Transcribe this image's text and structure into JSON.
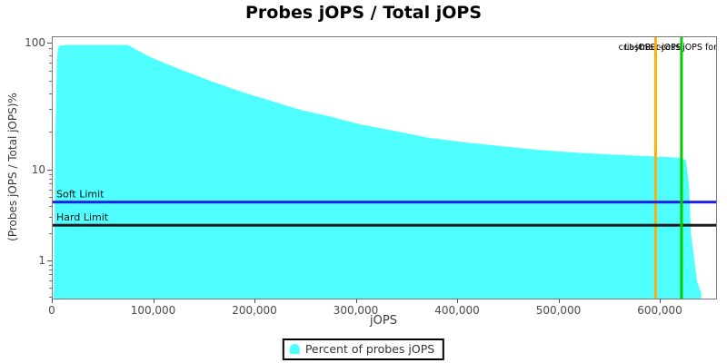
{
  "title": "Probes jOPS / Total jOPS",
  "axes": {
    "x": {
      "label": "jOPS",
      "tick_labels": [
        "0",
        "100,000",
        "200,000",
        "300,000",
        "400,000",
        "500,000",
        "600,000"
      ],
      "tick_values": [
        0,
        100000,
        200000,
        300000,
        400000,
        500000,
        600000
      ]
    },
    "y": {
      "label": "(Probes jOPS / Total jOPS)%",
      "scale": "log",
      "tick_labels": [
        "100",
        "10",
        "1"
      ],
      "tick_values": [
        100,
        10,
        1
      ]
    }
  },
  "legend": {
    "items": [
      {
        "label": "Percent of probes jOPS",
        "color": "#4FFFFF"
      }
    ]
  },
  "annotations": {
    "soft_limit": {
      "label": "Soft Limit",
      "value_pct": 4.5,
      "color": "#1E1EE6"
    },
    "hard_limit": {
      "label": "Hard Limit",
      "value_pct": 2.5,
      "color": "#1B1B1B"
    },
    "vlines": [
      {
        "label": "crit-jOPS",
        "jops": 595000,
        "color": "#FFAD0A"
      },
      {
        "label": "max-jOPS",
        "jops": 620500,
        "color": "#00CE00"
      }
    ],
    "clipped_label": "Last Success jOPS for S"
  },
  "chart_data": {
    "type": "area",
    "title": "Probes jOPS / Total jOPS",
    "xlabel": "jOPS",
    "ylabel": "(Probes jOPS / Total jOPS)%",
    "series_name": "Percent of probes jOPS",
    "fill_color": "#4FFFFF",
    "x_range": [
      0,
      655000
    ],
    "y_log_range": [
      0.37,
      110
    ],
    "grid": false,
    "legend_position": "bottom-center",
    "points": [
      [
        900,
        0.4
      ],
      [
        2700,
        20
      ],
      [
        4000,
        70
      ],
      [
        5000,
        90
      ],
      [
        6500,
        96
      ],
      [
        13000,
        97.5
      ],
      [
        74000,
        97.5
      ],
      [
        95000,
        79
      ],
      [
        125000,
        63
      ],
      [
        155000,
        51
      ],
      [
        185000,
        42
      ],
      [
        215000,
        35.5
      ],
      [
        245000,
        30
      ],
      [
        275000,
        26.5
      ],
      [
        305000,
        23
      ],
      [
        335000,
        20.7
      ],
      [
        370000,
        18.2
      ],
      [
        406000,
        16.7
      ],
      [
        442000,
        15.6
      ],
      [
        478000,
        14.6
      ],
      [
        514000,
        13.9
      ],
      [
        550000,
        13.4
      ],
      [
        586000,
        13.0
      ],
      [
        621000,
        12.6
      ],
      [
        625000,
        12.0
      ],
      [
        628000,
        7.0
      ],
      [
        630000,
        2.0
      ],
      [
        636000,
        0.6
      ],
      [
        640000,
        0.45
      ]
    ],
    "hlines": [
      {
        "name": "Soft Limit",
        "y": 4.5
      },
      {
        "name": "Hard Limit",
        "y": 2.5
      }
    ],
    "vlines": [
      {
        "name": "crit-jOPS",
        "x": 595000
      },
      {
        "name": "max-jOPS",
        "x": 620500
      }
    ]
  }
}
